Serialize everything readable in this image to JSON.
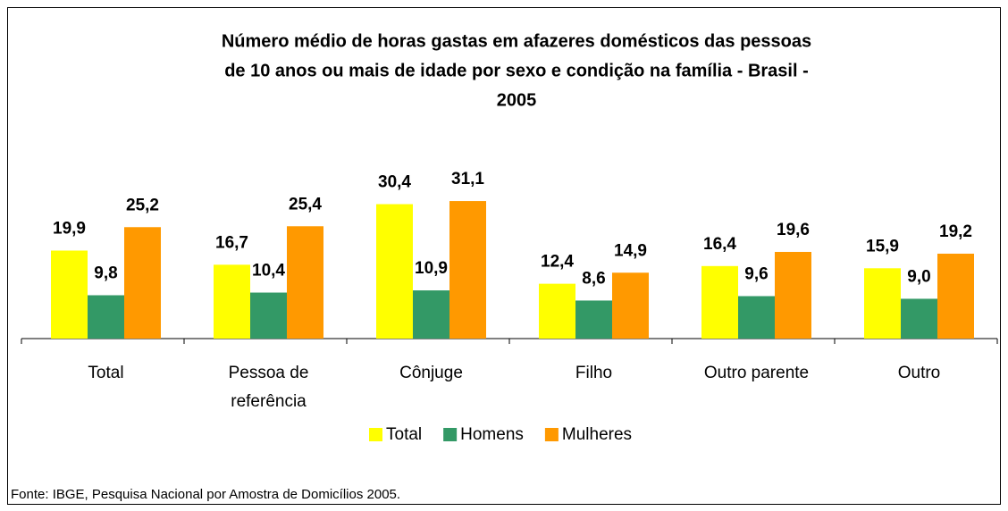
{
  "chart_data": {
    "type": "bar",
    "title": [
      "Número médio de horas gastas em afazeres domésticos das pessoas",
      "de 10 anos ou mais de idade por sexo e condição na família - Brasil -",
      "2005"
    ],
    "categories": [
      "Total",
      "Pessoa de referência",
      "Cônjuge",
      "Filho",
      "Outro parente",
      "Outro"
    ],
    "series": [
      {
        "name": "Total",
        "color": "#ffff00",
        "values": [
          19.9,
          16.7,
          30.4,
          12.4,
          16.4,
          15.9
        ],
        "value_labels": [
          "19,9",
          "16,7",
          "30,4",
          "12,4",
          "16,4",
          "15,9"
        ]
      },
      {
        "name": "Homens",
        "color": "#339966",
        "values": [
          9.8,
          10.4,
          10.9,
          8.6,
          9.6,
          9.0
        ],
        "value_labels": [
          "9,8",
          "10,4",
          "10,9",
          "8,6",
          "9,6",
          "9,0"
        ]
      },
      {
        "name": "Mulheres",
        "color": "#ff9900",
        "values": [
          25.2,
          25.4,
          31.1,
          14.9,
          19.6,
          19.2
        ],
        "value_labels": [
          "25,2",
          "25,4",
          "31,1",
          "14,9",
          "19,6",
          "19,2"
        ]
      }
    ],
    "legend": "bottom",
    "source": "Fonte: IBGE, Pesquisa Nacional por Amostra de Domicílios 2005."
  }
}
